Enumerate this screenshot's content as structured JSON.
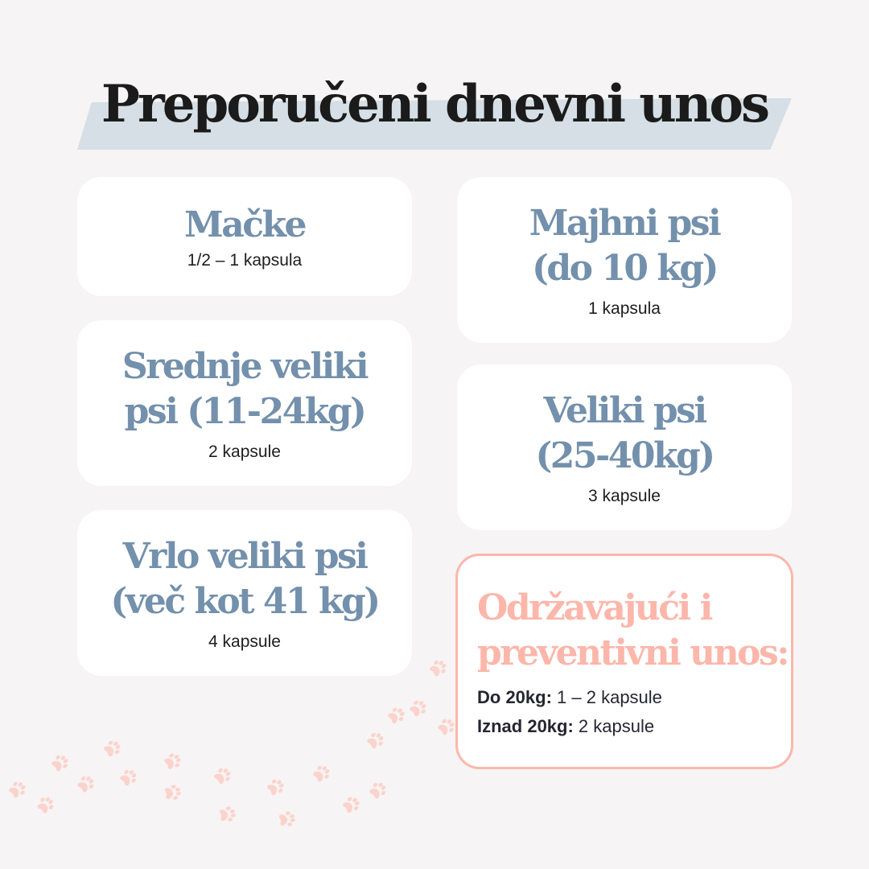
{
  "title": "Preporučeni dnevni unos",
  "accent_color": "#7390ac",
  "highlight_color": "#fcb6aa",
  "cards": [
    {
      "heading": "Mačke",
      "dose": "1/2 – 1 kapsula"
    },
    {
      "heading": "Majhni psi (do 10 kg)",
      "dose": "1 kapsula"
    },
    {
      "heading": "Srednje veliki psi (11-24kg)",
      "dose": "2 kapsule"
    },
    {
      "heading": "Veliki psi (25-40kg)",
      "dose": "3 kapsule"
    },
    {
      "heading": "Vrlo veliki psi (več kot 41 kg)",
      "dose": "4 kapsule"
    }
  ],
  "maintenance": {
    "heading": "Održavajući i preventivni unos:",
    "rows": [
      {
        "label": "Do 20kg:",
        "value": " 1 – 2 kapsule"
      },
      {
        "label": "Iznad 20kg:",
        "value": " 2 kapsule"
      }
    ]
  },
  "decoration_icon": "paw-print-icon"
}
